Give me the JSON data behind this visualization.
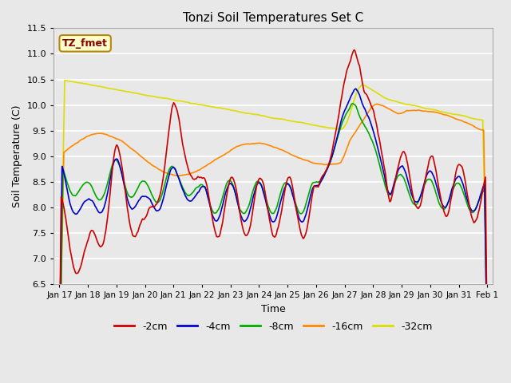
{
  "title": "Tonzi Soil Temperatures Set C",
  "xlabel": "Time",
  "ylabel": "Soil Temperature (C)",
  "ylim": [
    6.5,
    11.5
  ],
  "background_color": "#e8e8e8",
  "plot_bg_color": "#e8e8e8",
  "annotation_text": "TZ_fmet",
  "annotation_color": "#8b0000",
  "annotation_bg": "#ffffcc",
  "annotation_border": "#b8860b",
  "colors": {
    "2cm": "#cc0000",
    "4cm": "#0000cc",
    "8cm": "#00aa00",
    "16cm": "#ff8800",
    "32cm": "#dddd00"
  },
  "x_tick_labels": [
    "Jan 17",
    "Jan 18",
    "Jan 19",
    "Jan 20",
    "Jan 21",
    "Jan 22",
    "Jan 23",
    "Jan 24",
    "Jan 25",
    "Jan 26",
    "Jan 27",
    "Jan 28",
    "Jan 29",
    "Jan 30",
    "Jan 31",
    "Feb 1"
  ]
}
